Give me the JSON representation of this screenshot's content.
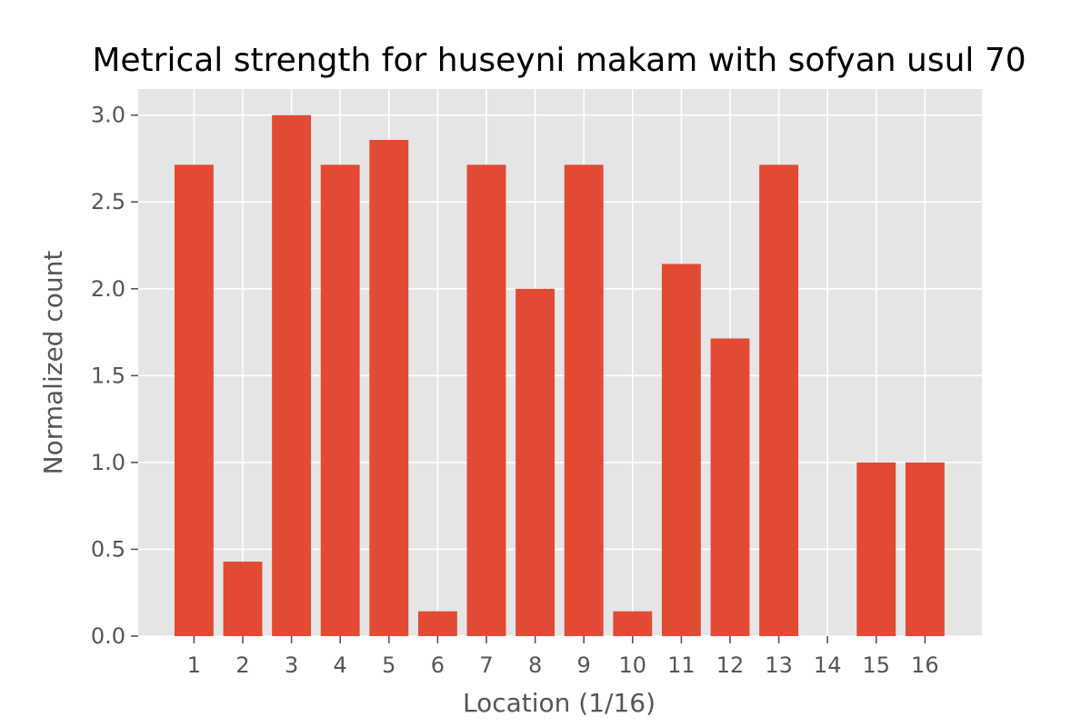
{
  "chart_data": {
    "type": "bar",
    "title": "Metrical strength for huseyni makam with sofyan usul 70",
    "xlabel": "Location (1/16)",
    "ylabel": "Normalized count",
    "categories": [
      "1",
      "2",
      "3",
      "4",
      "5",
      "6",
      "7",
      "8",
      "9",
      "10",
      "11",
      "12",
      "13",
      "14",
      "15",
      "16"
    ],
    "values": [
      2.714,
      0.429,
      3.0,
      2.714,
      2.857,
      0.143,
      2.714,
      2.0,
      2.714,
      0.143,
      2.143,
      1.714,
      2.714,
      0.0,
      1.0,
      1.0
    ],
    "yticks": [
      "0.0",
      "0.5",
      "1.0",
      "1.5",
      "2.0",
      "2.5",
      "3.0"
    ],
    "ytick_values": [
      0,
      0.5,
      1.0,
      1.5,
      2.0,
      2.5,
      3.0
    ],
    "ylim": [
      0,
      3.15
    ],
    "grid": true,
    "colors": {
      "bar": "#E24A33",
      "background": "#E5E5E5",
      "grid": "#FFFFFF",
      "tick": "#555555",
      "title": "#000000"
    }
  }
}
